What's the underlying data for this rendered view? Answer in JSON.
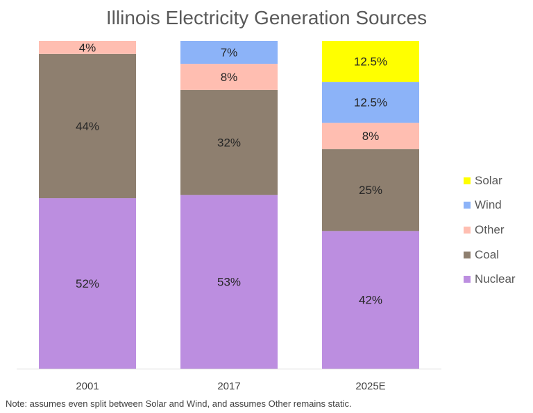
{
  "chart_data": {
    "type": "bar",
    "stacked": true,
    "title": "Illinois Electricity Generation Sources",
    "xlabel": "",
    "ylabel": "",
    "ylim": [
      0,
      100
    ],
    "categories": [
      "2001",
      "2017",
      "2025E"
    ],
    "series": [
      {
        "name": "Nuclear",
        "color": "#bc8ee0",
        "values": [
          52,
          53,
          42
        ],
        "labels": [
          "52%",
          "53%",
          "42%"
        ]
      },
      {
        "name": "Coal",
        "color": "#8e7f6f",
        "values": [
          44,
          32,
          25
        ],
        "labels": [
          "44%",
          "32%",
          "25%"
        ]
      },
      {
        "name": "Other",
        "color": "#ffbeb1",
        "values": [
          4,
          8,
          8
        ],
        "labels": [
          "4%",
          "8%",
          "8%"
        ]
      },
      {
        "name": "Wind",
        "color": "#8cb3f8",
        "values": [
          0,
          7,
          12.5
        ],
        "labels": [
          "",
          "7%",
          "12.5%"
        ]
      },
      {
        "name": "Solar",
        "color": "#ffff00",
        "values": [
          0,
          0,
          12.5
        ],
        "labels": [
          "",
          "",
          "12.5%"
        ]
      }
    ],
    "legend_position": "right",
    "legend_order": [
      "Solar",
      "Wind",
      "Other",
      "Coal",
      "Nuclear"
    ],
    "grid": false,
    "note": "Note: assumes even split between Solar and Wind, and assumes Other remains static."
  }
}
